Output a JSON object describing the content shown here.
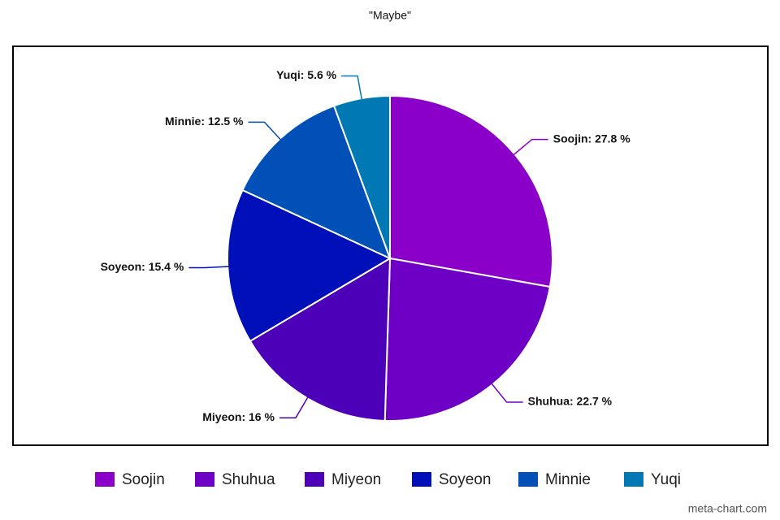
{
  "chart_data": {
    "type": "pie",
    "title": "\"Maybe\"",
    "categories": [
      "Soojin",
      "Shuhua",
      "Miyeon",
      "Soyeon",
      "Minnie",
      "Yuqi"
    ],
    "values": [
      27.8,
      22.7,
      16,
      15.4,
      12.5,
      5.6
    ],
    "value_labels": [
      "Soojin: 27.8 %",
      "Shuhua: 22.7 %",
      "Miyeon: 16 %",
      "Soyeon: 15.4 %",
      "Minnie: 12.5 %",
      "Yuqi: 5.6 %"
    ],
    "colors": [
      "#8a00c8",
      "#6d00c4",
      "#4c00b8",
      "#0010b8",
      "#0050b8",
      "#0078b4"
    ],
    "legend": "bottom",
    "credit": "meta-chart.com"
  }
}
